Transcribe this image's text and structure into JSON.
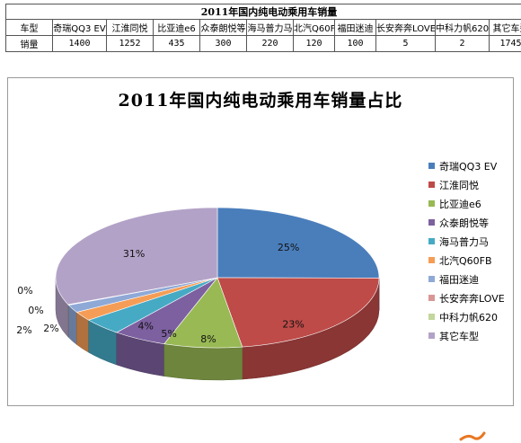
{
  "table": {
    "title": "2011年国内纯电动乘用车销量",
    "header_label": "车型",
    "row_label": "销量",
    "models": [
      "奇瑞QQ3 EV",
      "江淮同悦",
      "比亚迪e6",
      "众泰朗悦等",
      "海马普力马",
      "北汽Q60FB",
      "福田迷迪",
      "长安奔奔LOVE",
      "中科力帆620",
      "其它车型"
    ],
    "sales": [
      "1400",
      "1252",
      "435",
      "300",
      "220",
      "120",
      "100",
      "5",
      "2",
      "1745"
    ]
  },
  "chart_data": {
    "type": "pie",
    "title": "2011年国内纯电动乘用车销量占比",
    "categories": [
      "奇瑞QQ3 EV",
      "江淮同悦",
      "比亚迪e6",
      "众泰朗悦等",
      "海马普力马",
      "北汽Q60FB",
      "福田迷迪",
      "长安奔奔LOVE",
      "中科力帆620",
      "其它车型"
    ],
    "values": [
      1400,
      1252,
      435,
      300,
      220,
      120,
      100,
      5,
      2,
      1745
    ],
    "percent_labels": [
      "25%",
      "23%",
      "8%",
      "5%",
      "4%",
      "2%",
      "2%",
      "0%",
      "0%",
      "31%"
    ],
    "colors": [
      "#4a7ebb",
      "#be4b48",
      "#98b954",
      "#7d60a0",
      "#46aac5",
      "#f59d56",
      "#8fa9d7",
      "#d99695",
      "#c3d69b",
      "#b3a2c7"
    ],
    "legend_position": "right",
    "style": "3d",
    "annotation_color": "#e87722"
  }
}
